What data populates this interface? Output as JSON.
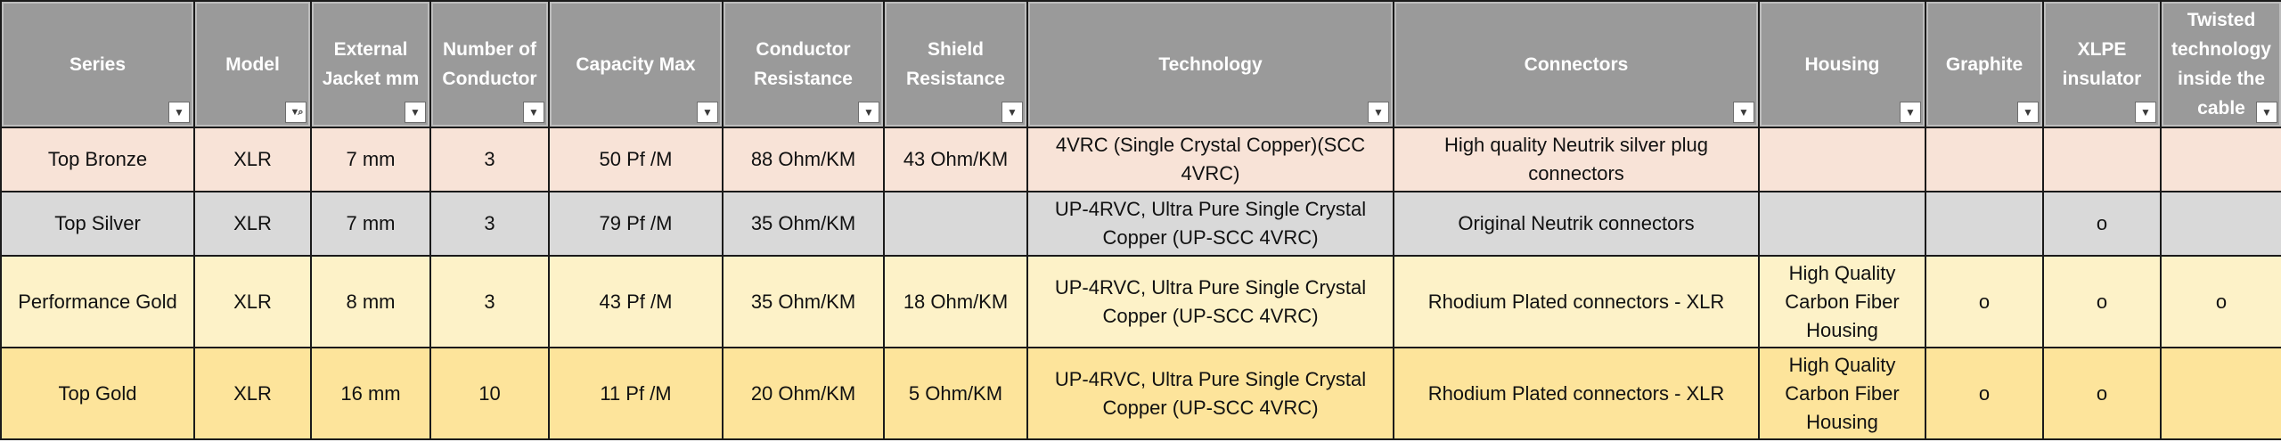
{
  "table": {
    "headers": [
      {
        "key": "series",
        "label": "Series",
        "filter": "plain"
      },
      {
        "key": "model",
        "label": "Model",
        "filter": "active"
      },
      {
        "key": "jacket",
        "label": "External Jacket mm",
        "filter": "plain"
      },
      {
        "key": "conductors",
        "label": "Number of Conductor",
        "filter": "plain"
      },
      {
        "key": "capacity",
        "label": "Capacity Max",
        "filter": "plain"
      },
      {
        "key": "cond_res",
        "label": "Conductor Resistance",
        "filter": "plain"
      },
      {
        "key": "shield_res",
        "label": "Shield Resistance",
        "filter": "plain"
      },
      {
        "key": "technology",
        "label": "Technology",
        "filter": "plain"
      },
      {
        "key": "connectors",
        "label": "Connectors",
        "filter": "plain"
      },
      {
        "key": "housing",
        "label": "Housing",
        "filter": "plain"
      },
      {
        "key": "graphite",
        "label": "Graphite",
        "filter": "plain"
      },
      {
        "key": "xlpe",
        "label": "XLPE insulator",
        "filter": "plain"
      },
      {
        "key": "twisted",
        "label": "Twisted technology inside the cable",
        "filter": "plain"
      }
    ],
    "filter_glyphs": {
      "plain": "▼",
      "active": "▼⌕"
    },
    "rows": [
      {
        "series": "Top Bronze",
        "model": "XLR",
        "jacket": "7 mm",
        "conductors": "3",
        "capacity": "50 Pf /M",
        "cond_res": "88 Ohm/KM",
        "shield_res": "43 Ohm/KM",
        "technology": "4VRC (Single Crystal Copper)(SCC 4VRC)",
        "connectors": "High quality Neutrik silver plug connectors",
        "housing": "",
        "graphite": "",
        "xlpe": "",
        "twisted": ""
      },
      {
        "series": "Top Silver",
        "model": "XLR",
        "jacket": "7 mm",
        "conductors": "3",
        "capacity": "79 Pf /M",
        "cond_res": "35 Ohm/KM",
        "shield_res": "",
        "technology": "UP-4RVC, Ultra Pure Single Crystal Copper (UP-SCC 4VRC)",
        "connectors": "Original Neutrik connectors",
        "housing": "",
        "graphite": "",
        "xlpe": "o",
        "twisted": ""
      },
      {
        "series": "Performance Gold",
        "model": "XLR",
        "jacket": "8 mm",
        "conductors": "3",
        "capacity": "43 Pf /M",
        "cond_res": "35 Ohm/KM",
        "shield_res": "18 Ohm/KM",
        "technology": "UP-4RVC, Ultra Pure Single Crystal Copper (UP-SCC 4VRC)",
        "connectors": "Rhodium Plated connectors - XLR",
        "housing": "High Quality Carbon Fiber Housing",
        "graphite": "o",
        "xlpe": "o",
        "twisted": "o"
      },
      {
        "series": "Top Gold",
        "model": "XLR",
        "jacket": "16 mm",
        "conductors": "10",
        "capacity": "11 Pf /M",
        "cond_res": "20 Ohm/KM",
        "shield_res": "5 Ohm/KM",
        "technology": "UP-4RVC, Ultra Pure Single Crystal Copper (UP-SCC 4VRC)",
        "connectors": "Rhodium Plated connectors - XLR",
        "housing": "High Quality Carbon Fiber Housing",
        "graphite": "o",
        "xlpe": "o",
        "twisted": ""
      }
    ]
  }
}
